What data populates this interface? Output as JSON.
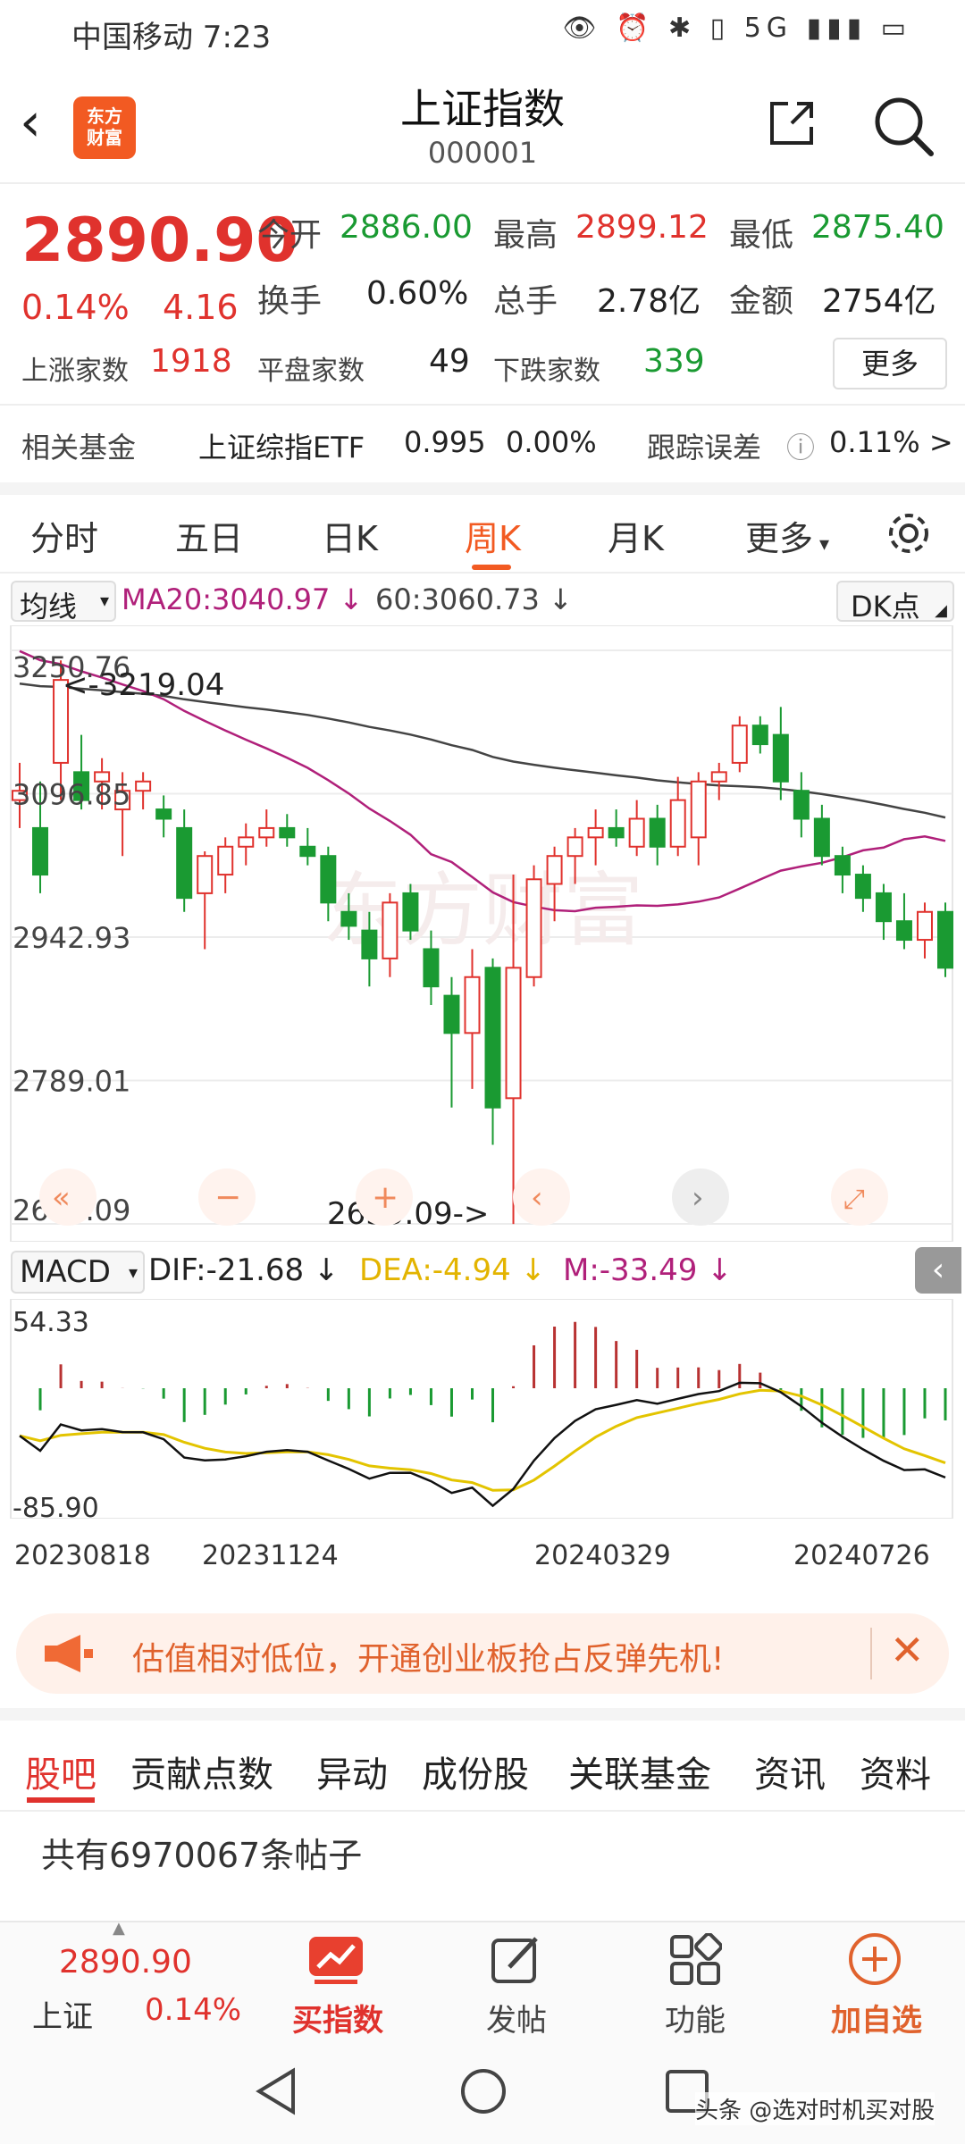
{
  "status_bar": {
    "carrier_time": "中国移动 7:23",
    "right": "👁 ⏰ ✱ ▯ 5G ▮▮▮ ▭"
  },
  "header": {
    "title": "上证指数",
    "code": "000001",
    "logo_line1": "东方",
    "logo_line2": "财富"
  },
  "quote": {
    "price": "2890.90",
    "change_pct": "0.14%",
    "change": "4.16",
    "open_label": "今开",
    "open": "2886.00",
    "high_label": "最高",
    "high": "2899.12",
    "low_label": "最低",
    "low": "2875.40",
    "turnover_label": "换手",
    "turnover": "0.60%",
    "volume_label": "总手",
    "volume": "2.78亿",
    "amount_label": "金额",
    "amount": "2754亿",
    "up_label": "上涨家数",
    "up": "1918",
    "flat_label": "平盘家数",
    "flat": "49",
    "down_label": "下跌家数",
    "down": "339",
    "more": "更多"
  },
  "fund": {
    "label": "相关基金",
    "name": "上证综指ETF",
    "price": "0.995",
    "pct": "0.00%",
    "err_label": "跟踪误差",
    "err": "0.11% >"
  },
  "tabs": [
    "分时",
    "五日",
    "日K",
    "周K",
    "月K",
    "更多"
  ],
  "ma": {
    "select": "均线",
    "ma20": "MA20:3040.97 ↓",
    "ma60": "60:3060.73 ↓",
    "dk": "DK点"
  },
  "kline": {
    "yticks": [
      "3250.76",
      "3096.85",
      "2942.93",
      "2789.01",
      "2635.09"
    ],
    "high_note": "<-3219.04",
    "low_note": "2635.09->"
  },
  "macd": {
    "select": "MACD",
    "dif": "DIF:-21.68 ↓",
    "dea": "DEA:-4.94 ↓",
    "m": "M:-33.49 ↓",
    "ymax": "54.33",
    "ymin": "-85.90"
  },
  "xaxis": [
    "20230818",
    "20231124",
    "20240329",
    "20240726"
  ],
  "banner": {
    "text": "估值相对低位，开通创业板抢占反弹先机!"
  },
  "news_tabs": [
    "股吧",
    "贡献点数",
    "异动",
    "成份股",
    "关联基金",
    "资讯",
    "资料"
  ],
  "posts": "共有6970067条帖子",
  "toolbar": {
    "price": "2890.90",
    "name": "上证",
    "pct": "0.14%",
    "buy": "买指数",
    "post": "发帖",
    "func": "功能",
    "add": "加自选"
  },
  "watermark": "头条 @选对时机买对股",
  "chart_data": [
    {
      "type": "candlestick",
      "title": "",
      "y_range": [
        2635.09,
        3250.76
      ],
      "annotations": {
        "max": 3219.04,
        "min": 2635.09
      },
      "series_ma": [
        {
          "name": "MA20",
          "last": 3040.97
        },
        {
          "name": "60",
          "last": 3060.73
        }
      ],
      "candles": [
        [
          3090,
          3130,
          3060,
          3100
        ],
        [
          3060,
          3110,
          2990,
          3010
        ],
        [
          3130,
          3240,
          3090,
          3219
        ],
        [
          3120,
          3160,
          3080,
          3090
        ],
        [
          3110,
          3135,
          3080,
          3120
        ],
        [
          3080,
          3120,
          3030,
          3100
        ],
        [
          3100,
          3120,
          3080,
          3110
        ],
        [
          3080,
          3095,
          3050,
          3070
        ],
        [
          3060,
          3080,
          2970,
          2985
        ],
        [
          2990,
          3035,
          2930,
          3030
        ],
        [
          3010,
          3050,
          2990,
          3040
        ],
        [
          3040,
          3065,
          3020,
          3050
        ],
        [
          3050,
          3080,
          3040,
          3060
        ],
        [
          3060,
          3075,
          3040,
          3050
        ],
        [
          3040,
          3060,
          3020,
          3030
        ],
        [
          3030,
          3040,
          2960,
          2980
        ],
        [
          2970,
          2990,
          2940,
          2955
        ],
        [
          2950,
          2970,
          2890,
          2920
        ],
        [
          2920,
          2990,
          2900,
          2980
        ],
        [
          2990,
          3000,
          2940,
          2950
        ],
        [
          2930,
          2950,
          2870,
          2890
        ],
        [
          2880,
          2900,
          2760,
          2840
        ],
        [
          2840,
          2930,
          2780,
          2900
        ],
        [
          2910,
          2920,
          2720,
          2760
        ],
        [
          2770,
          3010,
          2635,
          2910
        ],
        [
          2900,
          3020,
          2890,
          3005
        ],
        [
          3000,
          3040,
          2960,
          3030
        ],
        [
          3030,
          3060,
          3000,
          3050
        ],
        [
          3050,
          3080,
          3020,
          3060
        ],
        [
          3060,
          3080,
          3040,
          3050
        ],
        [
          3040,
          3090,
          3030,
          3070
        ],
        [
          3070,
          3085,
          3020,
          3040
        ],
        [
          3040,
          3115,
          3030,
          3090
        ],
        [
          3050,
          3120,
          3020,
          3110
        ],
        [
          3110,
          3130,
          3090,
          3120
        ],
        [
          3130,
          3180,
          3120,
          3170
        ],
        [
          3170,
          3180,
          3140,
          3150
        ],
        [
          3160,
          3190,
          3090,
          3110
        ],
        [
          3100,
          3120,
          3050,
          3070
        ],
        [
          3070,
          3085,
          3020,
          3030
        ],
        [
          3030,
          3040,
          2990,
          3010
        ],
        [
          3010,
          3020,
          2970,
          2985
        ],
        [
          2990,
          3000,
          2940,
          2960
        ],
        [
          2960,
          2990,
          2930,
          2940
        ],
        [
          2940,
          2980,
          2920,
          2970
        ],
        [
          2970,
          2980,
          2900,
          2910
        ]
      ]
    },
    {
      "type": "macd",
      "y_range": [
        -85.9,
        54.33
      ],
      "last": {
        "DIF": -21.68,
        "DEA": -4.94,
        "M": -33.49
      }
    }
  ]
}
